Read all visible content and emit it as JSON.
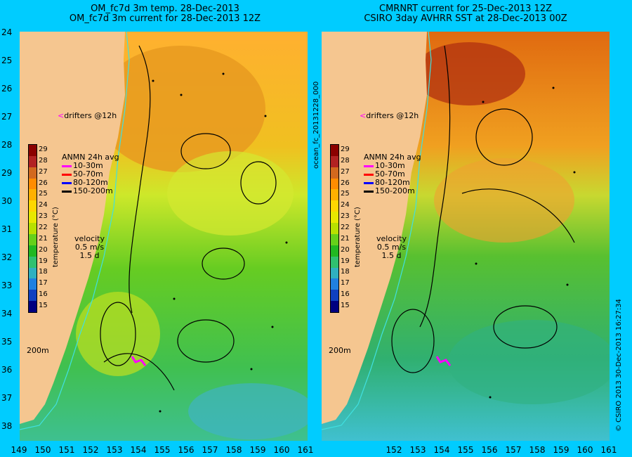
{
  "titles": {
    "left": [
      "OM_fc7d 3m temp. 28-Dec-2013",
      "OM_fc7d 3m current for 28-Dec-2013 12Z"
    ],
    "right": [
      "CMRNRT current for 25-Dec-2013 12Z",
      "CSIRO 3day AVHRR SST at 28-Dec-2013 00Z"
    ]
  },
  "axes": {
    "y_labels": [
      "24",
      "25",
      "26",
      "27",
      "28",
      "29",
      "30",
      "31",
      "32",
      "33",
      "34",
      "35",
      "36",
      "37",
      "38"
    ],
    "x_labels_left": [
      "149",
      "150",
      "151",
      "152",
      "153",
      "154",
      "155",
      "156",
      "157",
      "158",
      "159",
      "160",
      "161"
    ],
    "x_labels_right": [
      "152",
      "153",
      "154",
      "155",
      "156",
      "157",
      "158",
      "159",
      "160",
      "161"
    ]
  },
  "overlay": {
    "drifters": "drifters @12h",
    "legend_title": "ANMN 24h avg",
    "legend_items": [
      {
        "label": "10-30m",
        "color": "#ff00ff"
      },
      {
        "label": "50-70m",
        "color": "#ff0000"
      },
      {
        "label": "80-120m",
        "color": "#0000ff"
      },
      {
        "label": "150-200m",
        "color": "#000000"
      }
    ],
    "velocity_title": "velocity",
    "velocity_speed": "0.5 m/s",
    "velocity_time": "1.5 d",
    "isobath": "200m"
  },
  "colorbar": {
    "title": "temperature (°C)",
    "labels": [
      "29",
      "28",
      "27",
      "26",
      "25",
      "24",
      "23",
      "22",
      "21",
      "20",
      "19",
      "18",
      "17",
      "16",
      "15"
    ],
    "colors": [
      "#8b0000",
      "#b22222",
      "#d2691e",
      "#ff8c00",
      "#ffb000",
      "#ffd700",
      "#e8e800",
      "#b8e000",
      "#66d01a",
      "#22b822",
      "#30c070",
      "#30b0c0",
      "#2080e0",
      "#1040c0",
      "#000080"
    ]
  },
  "side_text": {
    "file_tag": "ocean_fc_20131228_000",
    "credit": "© CSIRO 2013   30-Dec-2013 16:27:34"
  }
}
